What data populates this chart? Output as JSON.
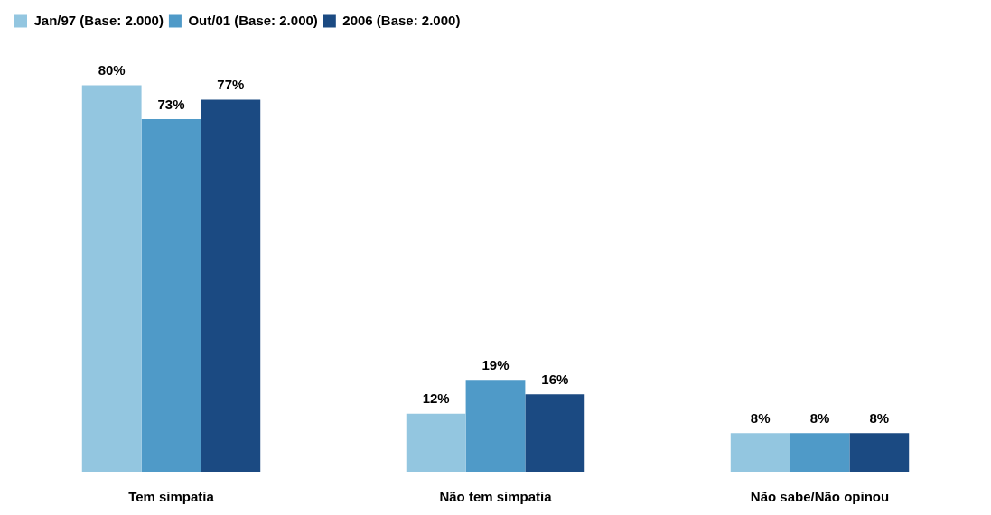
{
  "chart_data": {
    "type": "bar",
    "categories": [
      "Tem simpatia",
      "Não tem simpatia",
      "Não sabe/Não opinou"
    ],
    "legend": "top left",
    "grid": false,
    "series": [
      {
        "name": "Jan/97 (Base: 2.000)",
        "color": "#93c6e0",
        "values": [
          80,
          12,
          8
        ],
        "value_labels": [
          "80%",
          "12%",
          "8%"
        ]
      },
      {
        "name": "Out/01 (Base: 2.000)",
        "color": "#4f9ac8",
        "values": [
          73,
          19,
          8
        ],
        "value_labels": [
          "73%",
          "19%",
          "8%"
        ]
      },
      {
        "name": "2006 (Base: 2.000)",
        "color": "#1b4a82",
        "values": [
          77,
          16,
          8
        ],
        "value_labels": [
          "77%",
          "16%",
          "8%"
        ]
      }
    ]
  }
}
